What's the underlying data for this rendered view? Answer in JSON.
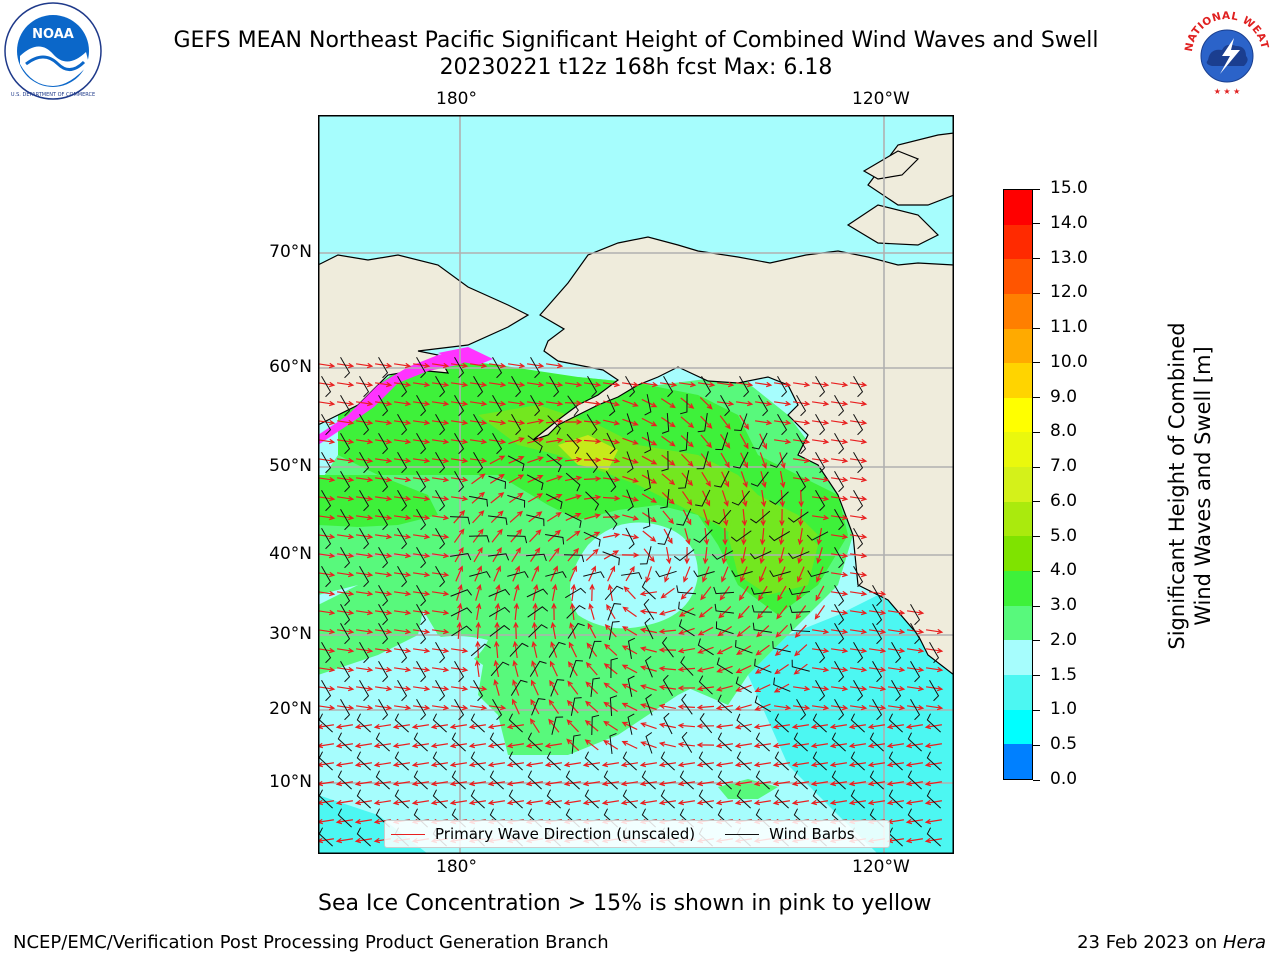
{
  "header": {
    "title_line1": "GEFS MEAN Northeast Pacific Significant Height of Combined Wind Waves and Swell",
    "title_line2": "20230221 t12z 168h fcst   Max: 6.18",
    "logo_left_text": "NOAA",
    "logo_left_ring_text": "NATIONAL OCEANIC AND ATMOSPHERIC ADMINISTRATION · U.S. DEPARTMENT OF COMMERCE",
    "logo_right_ring_text": "NATIONAL WEATHER SERVICE"
  },
  "map": {
    "lon_labels": [
      "180°",
      "120°W"
    ],
    "lat_labels": [
      "70°N",
      "60°N",
      "50°N",
      "40°N",
      "30°N",
      "20°N",
      "10°N"
    ],
    "colors": {
      "land": "#efecdc",
      "ocean_base": "#a6fdfd",
      "wave_3_4": "#58f97c",
      "wave_4_5": "#3ef13a",
      "wave_5_6": "#73e71f",
      "wave_6_7": "#c6ea1a",
      "wave_cyan": "#4cf7f2",
      "ice": "#ff33ff",
      "wave_arrow": "#e82020",
      "wind_barb": "#111111"
    },
    "legend": {
      "wave_label": "Primary Wave Direction (unscaled)",
      "barb_label": "Wind Barbs"
    }
  },
  "colorbar": {
    "label_line1": "Significant Height of Combined",
    "label_line2": "Wind Waves and Swell [m]",
    "ticks": [
      "15.0",
      "14.0",
      "13.0",
      "12.0",
      "11.0",
      "10.0",
      "9.0",
      "8.0",
      "7.0",
      "6.0",
      "5.0",
      "4.0",
      "3.0",
      "2.0",
      "1.5",
      "1.0",
      "0.5",
      "0.0"
    ],
    "colors": [
      "#ff0000",
      "#ff2a00",
      "#ff5500",
      "#ff7f00",
      "#ffaa00",
      "#ffd400",
      "#ffff00",
      "#eaf80d",
      "#d4f11a",
      "#aaea0d",
      "#7fe300",
      "#3ef13a",
      "#58f97c",
      "#a6fdfd",
      "#4cf7f2",
      "#00ffff",
      "#0080ff",
      "#0000ff"
    ]
  },
  "notes": {
    "ice_note": "Sea Ice Concentration > 15% is shown in pink to yellow",
    "footer_left": "NCEP/EMC/Verification Post Processing Product Generation Branch",
    "footer_date": "23 Feb 2023 on ",
    "footer_host": "Hera"
  }
}
